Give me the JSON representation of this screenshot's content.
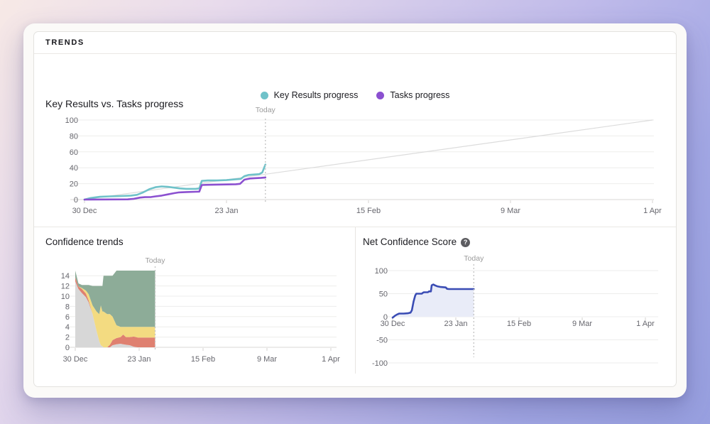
{
  "header": {
    "title": "TRENDS"
  },
  "colors": {
    "key_results": "#6fc2c9",
    "tasks": "#8b50d0",
    "expected_line": "#dcdcdc",
    "ncs_line": "#3a4cb4",
    "ncs_fill": "#e9ecf8",
    "stack_gray": "#d7d7d7",
    "stack_red": "#df8070",
    "stack_yellow": "#f3db81",
    "stack_green": "#8dac98"
  },
  "chart_data": [
    {
      "id": "chart-kr",
      "type": "line",
      "title": "Key Results vs. Tasks progress",
      "x_tick_labels": [
        "30 Dec",
        "23 Jan",
        "15 Feb",
        "9 Mar",
        "1 Apr"
      ],
      "y_ticks": [
        0,
        20,
        40,
        60,
        80,
        100
      ],
      "ylim": [
        0,
        100
      ],
      "grid": true,
      "legend_position": "top-center",
      "today_label": "Today",
      "today_day": 29.3,
      "legend": [
        {
          "label": "Key Results progress",
          "color": "#6fc2c9"
        },
        {
          "label": "Tasks progress",
          "color": "#8b50d0"
        }
      ],
      "series": [
        {
          "name": "expected-progress-line",
          "color": "#dcdcdc",
          "width": 1.2,
          "points": [
            [
              0,
              0
            ],
            [
              92,
              100
            ]
          ]
        },
        {
          "name": "Key Results progress",
          "color": "#6fc2c9",
          "width": 2.6,
          "points": [
            [
              0,
              0
            ],
            [
              1,
              2
            ],
            [
              2.5,
              3.5
            ],
            [
              4,
              4
            ],
            [
              6,
              4.5
            ],
            [
              7.5,
              5
            ],
            [
              8.5,
              6
            ],
            [
              9.5,
              9
            ],
            [
              10.5,
              13
            ],
            [
              11.5,
              15.5
            ],
            [
              12.5,
              16.5
            ],
            [
              13.5,
              16
            ],
            [
              14.5,
              15
            ],
            [
              15.5,
              14
            ],
            [
              16.5,
              13.5
            ],
            [
              18,
              13.5
            ],
            [
              18.6,
              14
            ],
            [
              19,
              23.5
            ],
            [
              20,
              24
            ],
            [
              21.5,
              24
            ],
            [
              23,
              24.5
            ],
            [
              24.5,
              25.5
            ],
            [
              25.3,
              26
            ],
            [
              25.9,
              29.5
            ],
            [
              26.6,
              31
            ],
            [
              27.5,
              31.5
            ],
            [
              28.3,
              32
            ],
            [
              28.8,
              34
            ],
            [
              29.3,
              44
            ]
          ]
        },
        {
          "name": "Tasks progress",
          "color": "#8b50d0",
          "width": 2.6,
          "points": [
            [
              0,
              0
            ],
            [
              7,
              0.3
            ],
            [
              8,
              1
            ],
            [
              9,
              2.5
            ],
            [
              9.8,
              3
            ],
            [
              10.8,
              3.2
            ],
            [
              11.5,
              4
            ],
            [
              12.5,
              5
            ],
            [
              13.5,
              6.5
            ],
            [
              14.5,
              8
            ],
            [
              15.3,
              9
            ],
            [
              16.5,
              9.5
            ],
            [
              18,
              9.8
            ],
            [
              18.6,
              10
            ],
            [
              19,
              18.3
            ],
            [
              20,
              18.6
            ],
            [
              21.5,
              18.8
            ],
            [
              23,
              19
            ],
            [
              24.5,
              19.3
            ],
            [
              25.2,
              19.8
            ],
            [
              25.9,
              25
            ],
            [
              26.8,
              26.5
            ],
            [
              27.8,
              27
            ],
            [
              28.6,
              27.3
            ],
            [
              29.3,
              27.8
            ]
          ]
        }
      ]
    },
    {
      "id": "chart-conf",
      "type": "stacked_area",
      "title": "Confidence trends",
      "x_tick_labels": [
        "30 Dec",
        "23 Jan",
        "15 Feb",
        "9 Mar",
        "1 Apr"
      ],
      "y_ticks": [
        0,
        2,
        4,
        6,
        8,
        10,
        12,
        14
      ],
      "ylim": [
        0,
        15
      ],
      "grid": true,
      "today_label": "Today",
      "today_day": 30,
      "bands": [
        {
          "name": "gray-band",
          "color": "#d7d7d7"
        },
        {
          "name": "red-band",
          "color": "#df8070"
        },
        {
          "name": "yellow-band",
          "color": "#f3db81"
        },
        {
          "name": "green-band",
          "color": "#8dac98"
        }
      ],
      "days": [
        0,
        1.2,
        2.5,
        4,
        5,
        6.5,
        8,
        9,
        9.6,
        10.2,
        10.6,
        12,
        13,
        14,
        15.5,
        17,
        18,
        19,
        20.5,
        22,
        23.5,
        30
      ],
      "values": [
        [
          12.9,
          0.8,
          0.0,
          1.3
        ],
        [
          11.4,
          0.5,
          0.0,
          0.6
        ],
        [
          10.6,
          0.8,
          0.2,
          0.6
        ],
        [
          9.8,
          0.7,
          0.6,
          1.1
        ],
        [
          8.8,
          0.4,
          1.2,
          1.8
        ],
        [
          6.5,
          0.0,
          1.7,
          3.8
        ],
        [
          3.2,
          0.0,
          3.8,
          5.0
        ],
        [
          1.2,
          0.0,
          5.3,
          5.5
        ],
        [
          0.4,
          0.0,
          7.8,
          3.8
        ],
        [
          0.2,
          0.0,
          6.8,
          5.0
        ],
        [
          0.0,
          0.0,
          7.0,
          7.0
        ],
        [
          0.0,
          0.0,
          6.5,
          7.5
        ],
        [
          0.0,
          0.5,
          6.0,
          7.5
        ],
        [
          0.4,
          1.0,
          4.6,
          8.0
        ],
        [
          0.6,
          1.2,
          2.5,
          10.7
        ],
        [
          0.7,
          1.3,
          2.0,
          11.0
        ],
        [
          0.6,
          1.9,
          1.5,
          11.0
        ],
        [
          0.5,
          1.5,
          2.0,
          11.0
        ],
        [
          0.4,
          1.6,
          2.0,
          11.0
        ],
        [
          0.1,
          2.0,
          1.9,
          11.0
        ],
        [
          0.0,
          1.9,
          2.1,
          11.0
        ],
        [
          0.0,
          1.9,
          2.1,
          11.0
        ]
      ]
    },
    {
      "id": "chart-ncs",
      "type": "line",
      "title": "Net Confidence Score",
      "help_glyph": "?",
      "x_tick_labels": [
        "30 Dec",
        "23 Jan",
        "15 Feb",
        "9 Mar",
        "1 Apr"
      ],
      "y_ticks": [
        100,
        50,
        0,
        -50,
        -100
      ],
      "ylim": [
        -100,
        100
      ],
      "grid": true,
      "today_label": "Today",
      "today_day": 29.5,
      "series": [
        {
          "name": "Net Confidence Score",
          "color": "#3a4cb4",
          "width": 2.6,
          "fill": "#e9ecf8",
          "points": [
            [
              0,
              -2
            ],
            [
              0.8,
              2
            ],
            [
              1.6,
              5
            ],
            [
              2.4,
              7
            ],
            [
              4,
              7
            ],
            [
              5.5,
              7.5
            ],
            [
              6.5,
              9
            ],
            [
              7,
              14
            ],
            [
              7.6,
              33
            ],
            [
              8.2,
              46
            ],
            [
              8.6,
              50
            ],
            [
              10.6,
              50
            ],
            [
              11,
              52
            ],
            [
              11.4,
              53
            ],
            [
              12.8,
              53
            ],
            [
              13.2,
              55
            ],
            [
              13.9,
              55
            ],
            [
              14.2,
              68
            ],
            [
              14.8,
              70
            ],
            [
              15.4,
              68
            ],
            [
              16.2,
              66
            ],
            [
              17.5,
              64.5
            ],
            [
              19.3,
              63.5
            ],
            [
              19.8,
              60.5
            ],
            [
              20.5,
              60
            ],
            [
              29.5,
              60
            ]
          ]
        }
      ]
    }
  ]
}
